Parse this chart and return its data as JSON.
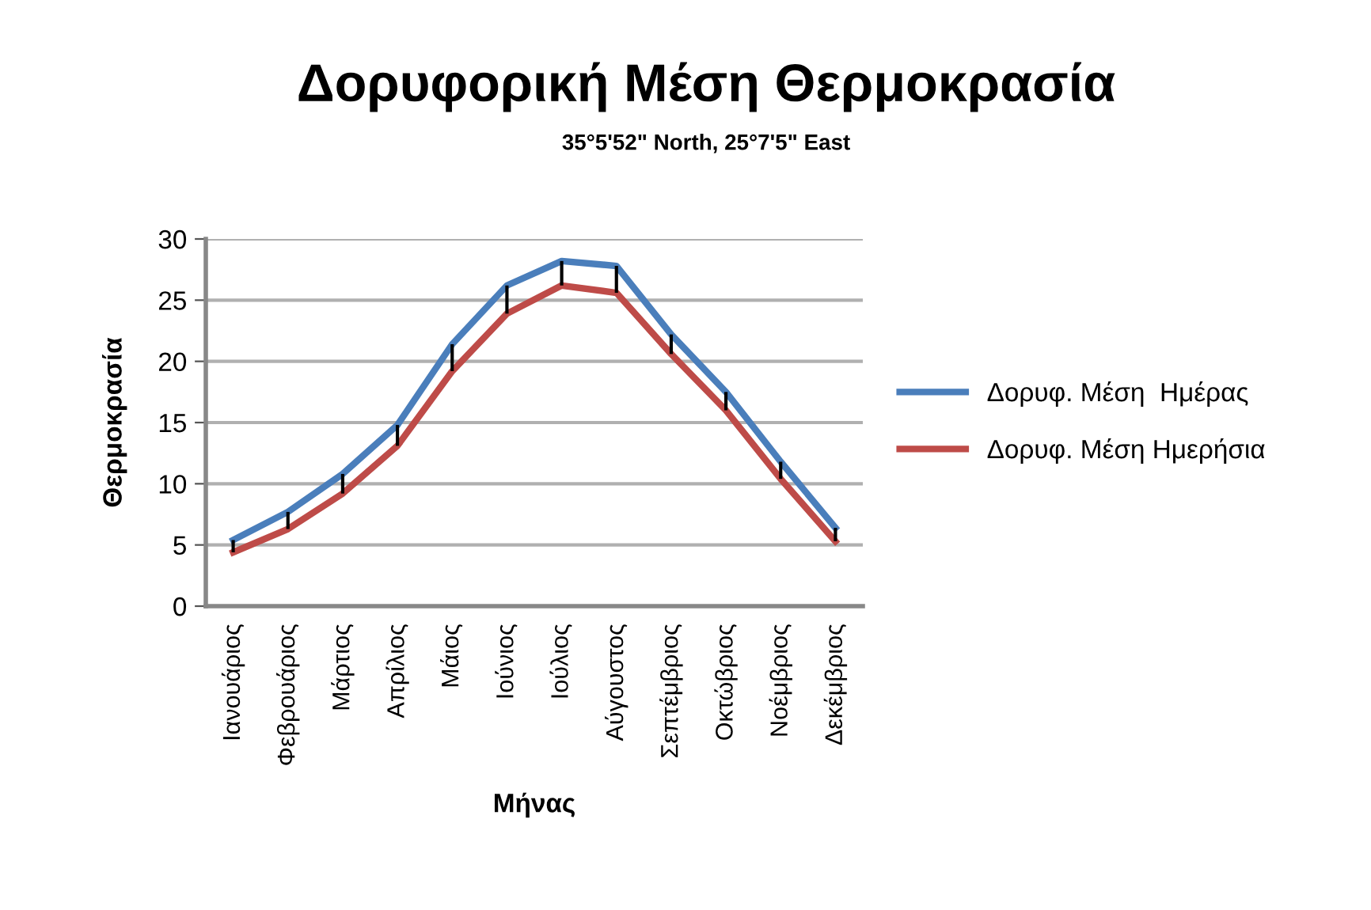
{
  "chart_data": {
    "type": "line",
    "title": "Δορυφορική Μέση Θερμοκρασία",
    "subtitle": "35°5'52\" North, 25°7'5\" East",
    "xlabel": "Μήνας",
    "ylabel": "Θερμοκρασία",
    "categories": [
      "Ιανουάριος",
      "Φεβρουάριος",
      "Μάρτιος",
      "Απρίλιος",
      "Μάιος",
      "Ιούνιος",
      "Ιούλιος",
      "Αύγουστος",
      "Σεπτέμβριος",
      "Οκτώβριος",
      "Νοέμβριος",
      "Δεκέμβριος"
    ],
    "series": [
      {
        "name": "Δορυφ. Μέση  Ημέρας",
        "color": "#4a7ebb",
        "values": [
          5.4,
          7.7,
          10.8,
          14.8,
          21.4,
          26.2,
          28.2,
          27.8,
          22.2,
          17.5,
          11.8,
          6.4
        ]
      },
      {
        "name": "Δορυφ. Μέση Ημερήσια",
        "color": "#be4b48",
        "values": [
          4.4,
          6.3,
          9.2,
          13.1,
          19.2,
          23.9,
          26.2,
          25.6,
          20.6,
          16.0,
          10.4,
          5.3
        ],
        "errors": [
          [
            4.4,
            5.4
          ],
          [
            6.3,
            7.7
          ],
          [
            9.2,
            10.8
          ],
          [
            13.1,
            14.8
          ],
          [
            19.2,
            21.4
          ],
          [
            23.9,
            26.2
          ],
          [
            26.2,
            28.2
          ],
          [
            25.6,
            27.8
          ],
          [
            20.6,
            22.2
          ],
          [
            16.0,
            17.5
          ],
          [
            10.4,
            11.8
          ],
          [
            5.3,
            6.4
          ]
        ]
      }
    ],
    "ylim": [
      0,
      30
    ],
    "yticks": [
      0,
      5,
      10,
      15,
      20,
      25,
      30
    ],
    "grid": "y",
    "legend": "right",
    "marker": "none",
    "line_style": "solid"
  }
}
